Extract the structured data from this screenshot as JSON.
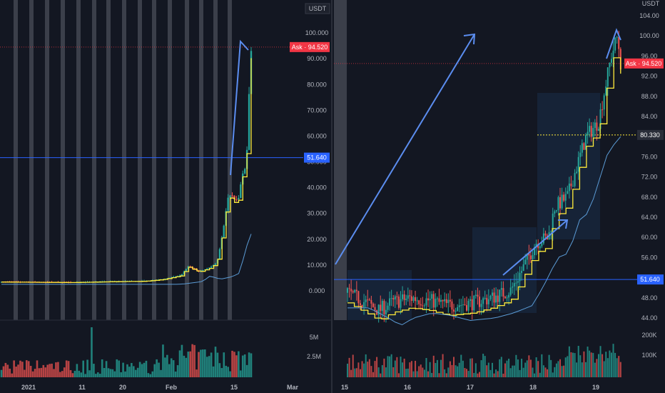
{
  "colors": {
    "background": "#131722",
    "up": "#26a69a",
    "down": "#ef5350",
    "line_yellow": "#ffeb3b",
    "ma_blue": "#5b9bd5",
    "arrow_blue": "#5b8def",
    "ask_red": "#f23645",
    "hline_blue": "#2962ff",
    "marker_grey": "#5d606b"
  },
  "left_panel": {
    "currency": "USDT",
    "ask_label": "Ask",
    "ask_value": "94.520",
    "hline_label": "51.640",
    "price_ticks": [
      "100.000",
      "90.000",
      "80.000",
      "70.000",
      "60.000",
      "50.000",
      "40.000",
      "30.000",
      "20.000",
      "10.000",
      "0.000"
    ],
    "volume_ticks": [
      "5M",
      "2.5M"
    ],
    "x_labels": [
      "2021",
      "11",
      "20",
      "Feb",
      "15",
      "Mar"
    ]
  },
  "right_panel": {
    "ask_label": "Ask",
    "ask_value": "94.520",
    "poc_value": "80.330",
    "hline_label": "51.640",
    "price_ticks": [
      "104.00",
      "100.00",
      "96.00",
      "92.00",
      "88.00",
      "84.00",
      "80.00",
      "76.00",
      "72.00",
      "68.00",
      "64.00",
      "60.00",
      "56.00",
      "52.00",
      "48.00",
      "44.00"
    ],
    "volume_ticks": [
      "200K",
      "100K"
    ],
    "x_labels": [
      "15",
      "16",
      "17",
      "18",
      "19"
    ]
  },
  "chart_data": [
    {
      "type": "candlestick",
      "title": "",
      "ylabel": "USDT",
      "ylim": [
        -5,
        110
      ],
      "horizontal_line": 51.64,
      "ask": 94.52,
      "x": [
        "2021",
        "11",
        "20",
        "Feb",
        "15",
        "Mar"
      ],
      "close_path": [
        [
          0,
          3.5
        ],
        [
          10,
          3.4
        ],
        [
          20,
          3.3
        ],
        [
          30,
          3.6
        ],
        [
          40,
          3.8
        ],
        [
          45,
          4.5
        ],
        [
          50,
          6
        ],
        [
          52,
          9.5
        ],
        [
          55,
          7.5
        ],
        [
          58,
          9
        ],
        [
          60,
          11
        ],
        [
          61,
          18
        ],
        [
          62,
          26
        ],
        [
          63,
          36
        ],
        [
          64,
          37.5
        ],
        [
          65,
          35
        ],
        [
          66,
          36
        ],
        [
          67,
          45
        ],
        [
          68,
          48
        ],
        [
          68.5,
          58
        ],
        [
          69,
          80
        ],
        [
          69.5,
          93
        ]
      ],
      "volume_max": 5000000
    },
    {
      "type": "candlestick",
      "title": "",
      "ylim": [
        43,
        105
      ],
      "horizontal_line": 51.64,
      "ask": 94.52,
      "poc": 80.33,
      "x": [
        "15",
        "16",
        "17",
        "18",
        "19"
      ],
      "close_path": [
        [
          0,
          49
        ],
        [
          0.3,
          47
        ],
        [
          0.5,
          45.5
        ],
        [
          0.7,
          47
        ],
        [
          1,
          48
        ],
        [
          1.3,
          47.5
        ],
        [
          1.6,
          46.5
        ],
        [
          2,
          47
        ],
        [
          2.3,
          48
        ],
        [
          2.6,
          49.5
        ],
        [
          2.8,
          54
        ],
        [
          3,
          59
        ],
        [
          3.2,
          60
        ],
        [
          3.3,
          66
        ],
        [
          3.5,
          68
        ],
        [
          3.6,
          72
        ],
        [
          3.8,
          80
        ],
        [
          4,
          83
        ],
        [
          4.2,
          96
        ],
        [
          4.3,
          100
        ],
        [
          4.35,
          94.5
        ]
      ],
      "volume_max": 200000
    }
  ]
}
